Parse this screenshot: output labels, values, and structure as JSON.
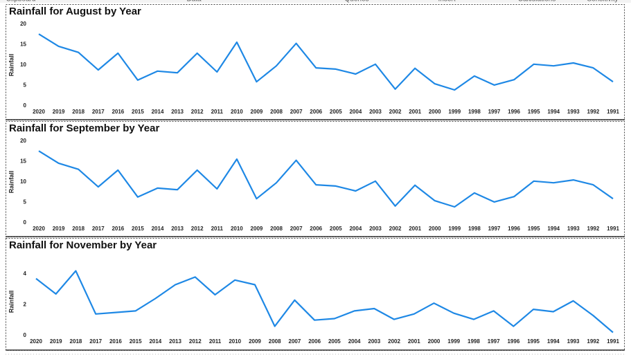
{
  "ribbon": {
    "groups": [
      "Clipboard",
      "Data",
      "Queries",
      "Insert",
      "Calculations",
      "Sensitivity"
    ]
  },
  "chart_data": [
    {
      "type": "line",
      "title": "Rainfall for August by Year",
      "y_label": "Rainfall",
      "categories": [
        "2020",
        "2019",
        "2018",
        "2017",
        "2016",
        "2015",
        "2014",
        "2013",
        "2012",
        "2011",
        "2010",
        "2009",
        "2008",
        "2007",
        "2006",
        "2005",
        "2004",
        "2003",
        "2002",
        "2001",
        "2000",
        "1999",
        "1998",
        "1997",
        "1996",
        "1995",
        "1994",
        "1993",
        "1992",
        "1991"
      ],
      "series": [
        {
          "name": "Rainfall",
          "color": "#1E88E5",
          "values": [
            17.6,
            14.6,
            13.1,
            8.8,
            12.9,
            6.3,
            8.5,
            8.1,
            12.9,
            8.3,
            15.6,
            5.9,
            9.8,
            15.3,
            9.3,
            9.0,
            7.8,
            10.2,
            4.1,
            9.2,
            5.4,
            3.9,
            7.3,
            5.1,
            6.4,
            10.2,
            9.8,
            10.5,
            9.3,
            5.9
          ]
        }
      ],
      "ylim": [
        0,
        20
      ],
      "yticks": [
        0,
        5,
        10,
        15,
        20
      ]
    },
    {
      "type": "line",
      "title": "Rainfall for September by Year",
      "y_label": "Rainfall",
      "categories": [
        "2020",
        "2019",
        "2018",
        "2017",
        "2016",
        "2015",
        "2014",
        "2013",
        "2012",
        "2011",
        "2010",
        "2009",
        "2008",
        "2007",
        "2006",
        "2005",
        "2004",
        "2003",
        "2002",
        "2001",
        "2000",
        "1999",
        "1998",
        "1997",
        "1996",
        "1995",
        "1994",
        "1993",
        "1992",
        "1991"
      ],
      "series": [
        {
          "name": "Rainfall",
          "color": "#1E88E5",
          "values": [
            17.6,
            14.6,
            13.1,
            8.8,
            12.9,
            6.3,
            8.5,
            8.1,
            12.9,
            8.3,
            15.6,
            5.9,
            9.8,
            15.3,
            9.3,
            9.0,
            7.8,
            10.2,
            4.1,
            9.2,
            5.4,
            3.9,
            7.3,
            5.1,
            6.4,
            10.2,
            9.8,
            10.5,
            9.3,
            5.9
          ]
        }
      ],
      "ylim": [
        0,
        20
      ],
      "yticks": [
        0,
        5,
        10,
        15,
        20
      ]
    },
    {
      "type": "line",
      "title": "Rainfall for November by Year",
      "y_label": "Rainfall",
      "categories": [
        "2020",
        "2019",
        "2018",
        "2017",
        "2016",
        "2015",
        "2014",
        "2013",
        "2012",
        "2011",
        "2010",
        "2009",
        "2008",
        "2007",
        "2006",
        "2005",
        "2004",
        "2003",
        "2002",
        "2001",
        "2000",
        "1999",
        "1998",
        "1997",
        "1996",
        "1995",
        "1994",
        "1993",
        "1992",
        "1991"
      ],
      "series": [
        {
          "name": "Rainfall",
          "color": "#1E88E5",
          "values": [
            3.7,
            2.7,
            4.2,
            1.4,
            1.5,
            1.6,
            2.4,
            3.3,
            3.8,
            2.65,
            3.6,
            3.3,
            0.6,
            2.3,
            1.0,
            1.1,
            1.6,
            1.75,
            1.05,
            1.4,
            2.1,
            1.45,
            1.05,
            1.6,
            0.6,
            1.7,
            1.55,
            2.25,
            1.3,
            0.2
          ]
        }
      ],
      "ylim": [
        0,
        4.4
      ],
      "yticks": [
        0,
        2,
        4
      ]
    }
  ]
}
